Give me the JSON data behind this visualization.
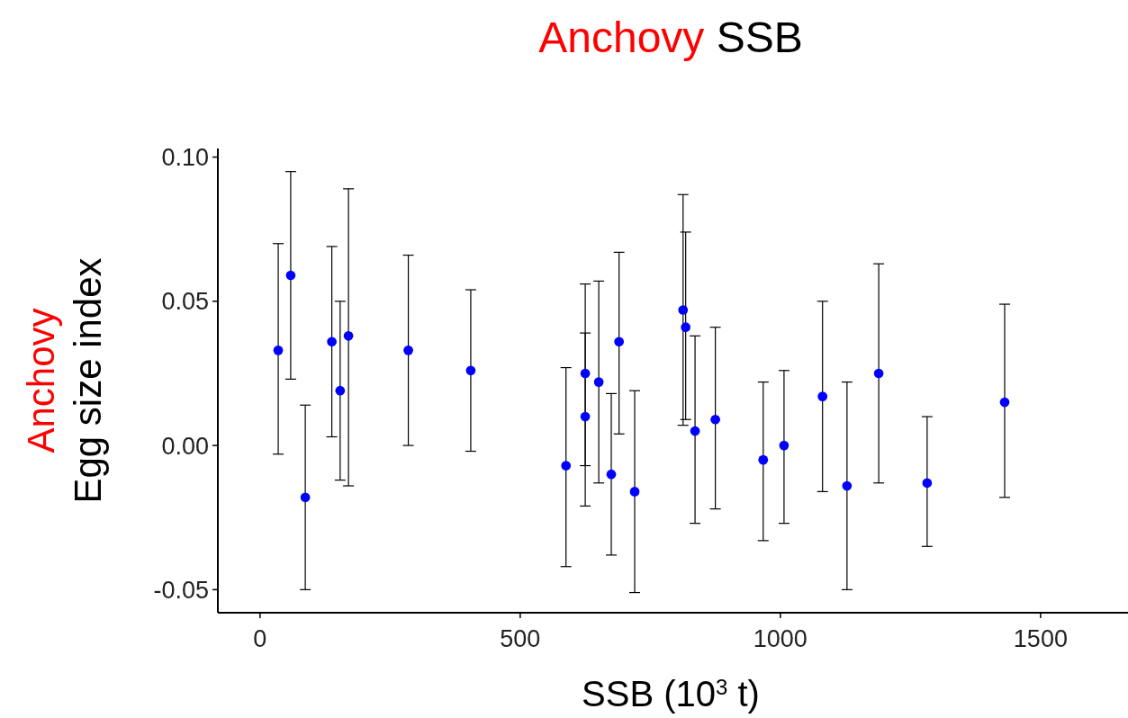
{
  "chart_data": {
    "type": "scatter",
    "title": "Anchovy SSB",
    "xlabel": "SSB (10$^{3}$ t)",
    "ylabel": "Anchovy Egg size index",
    "x": [
      35,
      59,
      87,
      138,
      154,
      170,
      285,
      405,
      588,
      625,
      625,
      651,
      675,
      690,
      720,
      813,
      818,
      836,
      875,
      967,
      1007,
      1081,
      1128,
      1189,
      1282,
      1431
    ],
    "series": [
      {
        "color": "#0000ff",
        "values": [
          0.033,
          0.059,
          -0.018,
          0.036,
          0.019,
          0.038,
          0.033,
          0.026,
          -0.007,
          0.025,
          0.01,
          0.022,
          -0.01,
          0.036,
          -0.016,
          0.047,
          0.041,
          0.005,
          0.009,
          -0.005,
          0.0,
          0.017,
          -0.014,
          0.025,
          -0.013,
          0.015
        ],
        "errors": [
          [
            -0.003,
            0.07
          ],
          [
            0.023,
            0.095
          ],
          [
            -0.05,
            0.014
          ],
          [
            0.003,
            0.069
          ],
          [
            -0.012,
            0.05
          ],
          [
            -0.014,
            0.089
          ],
          [
            0.0,
            0.066
          ],
          [
            -0.002,
            0.054
          ],
          [
            -0.042,
            0.027
          ],
          [
            -0.021,
            0.056
          ],
          [
            -0.007,
            0.039
          ],
          [
            -0.013,
            0.057
          ],
          [
            -0.038,
            0.018
          ],
          [
            0.004,
            0.067
          ],
          [
            -0.051,
            0.019
          ],
          [
            0.007,
            0.087
          ],
          [
            0.009,
            0.074
          ],
          [
            -0.027,
            0.038
          ],
          [
            -0.022,
            0.041
          ],
          [
            -0.033,
            0.022
          ],
          [
            -0.027,
            0.026
          ],
          [
            -0.016,
            0.05
          ],
          [
            -0.05,
            0.022
          ],
          [
            -0.013,
            0.063
          ],
          [
            -0.035,
            0.01
          ],
          [
            -0.018,
            0.049
          ]
        ]
      }
    ],
    "xlim": [
      -81,
      1668
    ],
    "ylim": [
      -0.058,
      0.103
    ],
    "xticks": [
      0,
      500,
      1000,
      1500
    ],
    "yticks": [
      {
        "value": -0.05,
        "label": "-0.05"
      },
      {
        "value": 0,
        "label": "0.00"
      },
      {
        "value": 0.05,
        "label": "0.05"
      },
      {
        "value": 0.1,
        "label": "0.10"
      }
    ],
    "marker": "circle",
    "grid": false
  }
}
